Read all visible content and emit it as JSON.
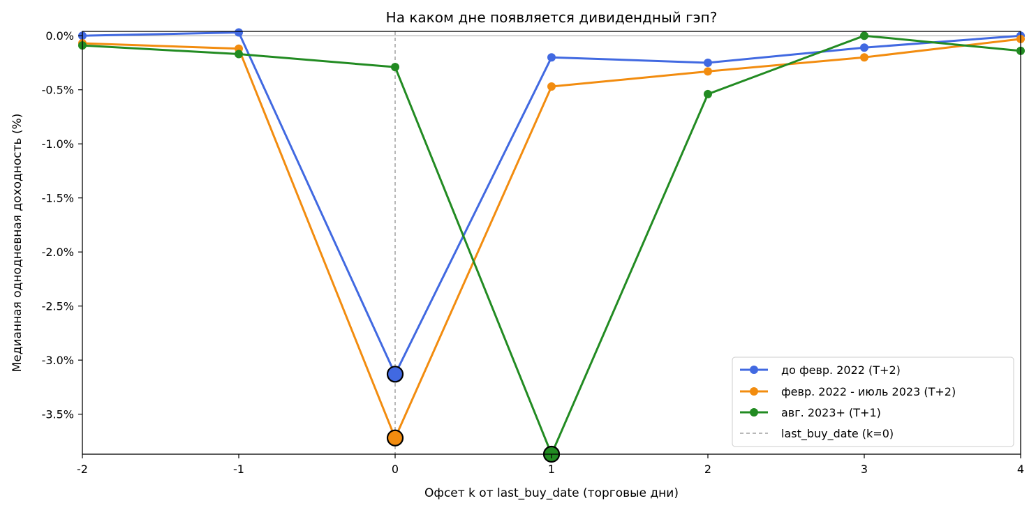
{
  "chart_data": {
    "type": "line",
    "title": "На каком дне появляется дивидендный гэп?",
    "xlabel": "Офсет k от last_buy_date (торговые дни)",
    "ylabel": "Медианная однодневная доходность (%)",
    "x": [
      -2,
      -1,
      0,
      1,
      2,
      3,
      4
    ],
    "xlim": [
      -2,
      4
    ],
    "ylim": [
      -3.87,
      0.04
    ],
    "x_ticks": [
      -2,
      -1,
      0,
      1,
      2,
      3,
      4
    ],
    "x_tick_labels": [
      "-2",
      "-1",
      "0",
      "1",
      "2",
      "3",
      "4"
    ],
    "y_ticks": [
      0.0,
      -0.5,
      -1.0,
      -1.5,
      -2.0,
      -2.5,
      -3.0,
      -3.5
    ],
    "y_tick_labels": [
      "0.0%",
      "-0.5%",
      "-1.0%",
      "-1.5%",
      "-2.0%",
      "-2.5%",
      "-3.0%",
      "-3.5%"
    ],
    "grid": false,
    "legend_position": "bottom-right",
    "series": [
      {
        "name": "до февр. 2022 (T+2)",
        "color": "#4169e1",
        "values": [
          0.0,
          0.03,
          -3.13,
          -0.2,
          -0.25,
          -0.11,
          0.0
        ],
        "highlight_index": 2
      },
      {
        "name": "февр. 2022 - июль 2023 (T+2)",
        "color": "#f28c0f",
        "values": [
          -0.07,
          -0.12,
          -3.72,
          -0.47,
          -0.33,
          -0.2,
          -0.03
        ],
        "highlight_index": 2
      },
      {
        "name": "авг. 2023+ (T+1)",
        "color": "#228b22",
        "values": [
          -0.09,
          -0.17,
          -0.29,
          -3.87,
          -0.54,
          0.0,
          -0.14
        ],
        "highlight_index": 3
      }
    ],
    "reference_lines": [
      {
        "orientation": "vertical",
        "x": 0,
        "style": "dashed",
        "color": "#a0a0a0",
        "label": "last_buy_date (k=0)"
      },
      {
        "orientation": "horizontal",
        "y": 0,
        "style": "solid",
        "color": "#a0a0a0"
      }
    ]
  }
}
